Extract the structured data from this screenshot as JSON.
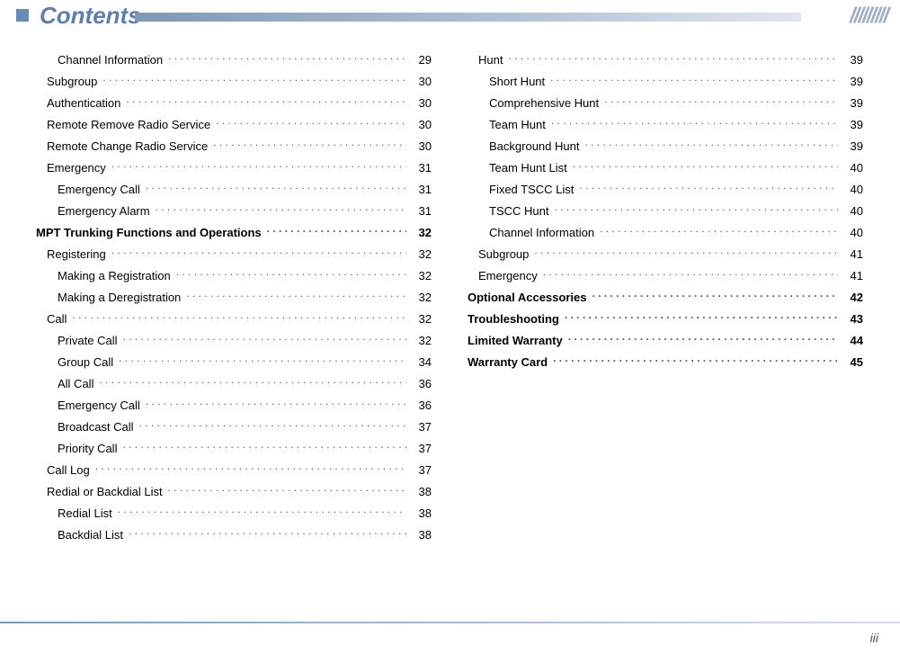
{
  "header": {
    "title": "Contents"
  },
  "footer": {
    "page": "iii"
  },
  "left": [
    {
      "label": "Channel Information",
      "page": "29",
      "indent": 2
    },
    {
      "label": "Subgroup",
      "page": "30",
      "indent": 1
    },
    {
      "label": "Authentication",
      "page": "30",
      "indent": 1
    },
    {
      "label": "Remote Remove Radio Service",
      "page": "30",
      "indent": 1
    },
    {
      "label": "Remote Change Radio Service",
      "page": "30",
      "indent": 1
    },
    {
      "label": "Emergency",
      "page": "31",
      "indent": 1
    },
    {
      "label": "Emergency Call",
      "page": "31",
      "indent": 2
    },
    {
      "label": "Emergency Alarm",
      "page": "31",
      "indent": 2
    },
    {
      "label": "MPT Trunking Functions and Operations",
      "page": "32",
      "indent": 0
    },
    {
      "label": "Registering",
      "page": "32",
      "indent": 1
    },
    {
      "label": "Making a Registration",
      "page": "32",
      "indent": 2
    },
    {
      "label": "Making a Deregistration",
      "page": "32",
      "indent": 2
    },
    {
      "label": "Call",
      "page": "32",
      "indent": 1
    },
    {
      "label": "Private Call",
      "page": "32",
      "indent": 2
    },
    {
      "label": "Group Call",
      "page": "34",
      "indent": 2
    },
    {
      "label": "All Call",
      "page": "36",
      "indent": 2
    },
    {
      "label": "Emergency Call",
      "page": "36",
      "indent": 2
    },
    {
      "label": "Broadcast Call",
      "page": "37",
      "indent": 2
    },
    {
      "label": "Priority Call",
      "page": "37",
      "indent": 2
    },
    {
      "label": "Call Log",
      "page": "37",
      "indent": 1
    },
    {
      "label": "Redial or Backdial List",
      "page": "38",
      "indent": 1
    },
    {
      "label": "Redial List",
      "page": "38",
      "indent": 2
    },
    {
      "label": "Backdial List",
      "page": "38",
      "indent": 2
    }
  ],
  "right": [
    {
      "label": "Hunt",
      "page": "39",
      "indent": 1
    },
    {
      "label": "Short Hunt",
      "page": "39",
      "indent": 2
    },
    {
      "label": "Comprehensive Hunt",
      "page": "39",
      "indent": 2
    },
    {
      "label": "Team Hunt",
      "page": "39",
      "indent": 2
    },
    {
      "label": "Background Hunt",
      "page": "39",
      "indent": 2
    },
    {
      "label": "Team Hunt List",
      "page": "40",
      "indent": 2
    },
    {
      "label": "Fixed TSCC List",
      "page": "40",
      "indent": 2
    },
    {
      "label": "TSCC Hunt",
      "page": "40",
      "indent": 2
    },
    {
      "label": "Channel Information",
      "page": "40",
      "indent": 2
    },
    {
      "label": "Subgroup",
      "page": "41",
      "indent": 1
    },
    {
      "label": "Emergency",
      "page": "41",
      "indent": 1
    },
    {
      "label": "Optional Accessories",
      "page": "42",
      "indent": 0
    },
    {
      "label": "Troubleshooting",
      "page": "43",
      "indent": 0
    },
    {
      "label": "Limited Warranty",
      "page": "44",
      "indent": 0
    },
    {
      "label": "Warranty Card",
      "page": "45",
      "indent": 0
    }
  ]
}
